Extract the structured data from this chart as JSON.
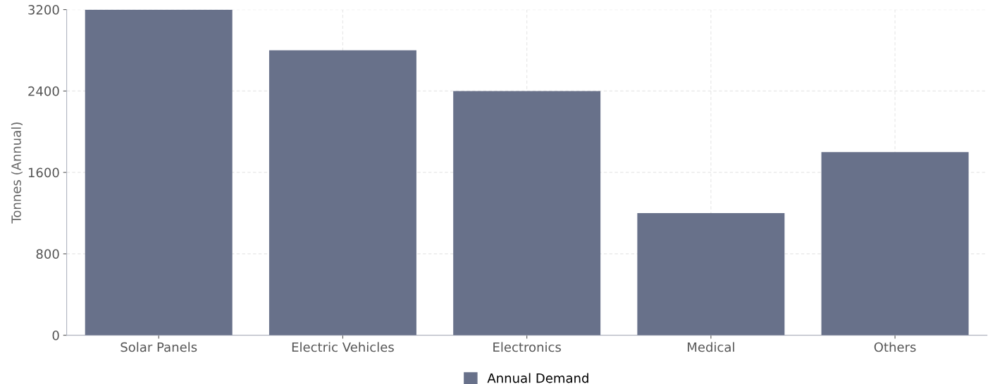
{
  "chart_data": {
    "type": "bar",
    "ylabel": "Tonnes (Annual)",
    "categories": [
      "Solar Panels",
      "Electric Vehicles",
      "Electronics",
      "Medical",
      "Others"
    ],
    "series": [
      {
        "name": "Annual Demand",
        "color": "#68718a",
        "values": [
          3200,
          2800,
          2400,
          1200,
          1800
        ]
      }
    ],
    "ylim": [
      0,
      3200
    ],
    "yticks": [
      0,
      800,
      1600,
      2400,
      3200
    ],
    "grid": true,
    "legend": "bottom"
  }
}
